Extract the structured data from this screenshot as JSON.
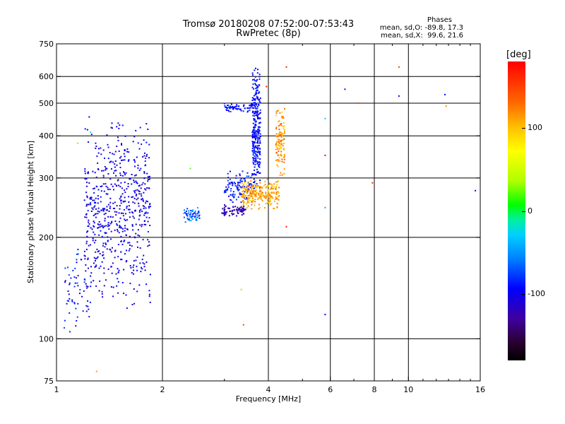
{
  "title_line1": "Tromsø 20180208 07:52:00-07:53:43",
  "title_line2": "RwPretec (8p)",
  "phase_header": "Phases",
  "phase_O": "mean, sd,O: -89.8, 17.3",
  "phase_X": "mean, sd,X:  99.6, 21.6",
  "chart_data": {
    "type": "scatter",
    "xlabel": "Frequency [MHz]",
    "ylabel": "Stationary phase Virtual Height [km]",
    "xscale": "log",
    "yscale": "log",
    "xlim": [
      1,
      16
    ],
    "ylim": [
      75,
      750
    ],
    "xticks": [
      1,
      2,
      4,
      6,
      8,
      10,
      16
    ],
    "xtick_labels": [
      "1",
      "2",
      "4",
      "6",
      "8",
      "10",
      "16"
    ],
    "yticks": [
      75,
      100,
      200,
      300,
      400,
      500,
      600,
      750
    ],
    "ytick_labels": [
      "75",
      "100",
      "200",
      "300",
      "400",
      "500",
      "600",
      "750"
    ],
    "grid": true,
    "colorbar": {
      "label": "[deg]",
      "range": [
        -180,
        180
      ],
      "ticks": [
        100,
        0,
        -100
      ],
      "tick_labels": [
        "100",
        "0",
        "-100"
      ]
    },
    "clusters": [
      {
        "f": [
          1.2,
          1.85
        ],
        "h": [
          120,
          480
        ],
        "phase": [
          -120,
          -85
        ],
        "n": 620
      },
      {
        "f": [
          1.05,
          1.25
        ],
        "h": [
          100,
          200
        ],
        "phase": [
          -110,
          -70
        ],
        "n": 60
      },
      {
        "f": [
          2.3,
          2.55
        ],
        "h": [
          220,
          245
        ],
        "phase": [
          -100,
          -30
        ],
        "n": 60
      },
      {
        "f": [
          2.95,
          3.45
        ],
        "h": [
          230,
          250
        ],
        "phase": [
          -140,
          -100
        ],
        "n": 70
      },
      {
        "f": [
          3.0,
          3.7
        ],
        "h": [
          250,
          320
        ],
        "phase": [
          -110,
          -70
        ],
        "n": 120
      },
      {
        "f": [
          3.6,
          3.8
        ],
        "h": [
          270,
          650
        ],
        "phase": [
          -105,
          -80
        ],
        "n": 300
      },
      {
        "f": [
          3.0,
          3.6
        ],
        "h": [
          470,
          500
        ],
        "phase": [
          -100,
          -80
        ],
        "n": 60
      },
      {
        "f": [
          3.35,
          4.3
        ],
        "h": [
          240,
          300
        ],
        "phase": [
          90,
          130
        ],
        "n": 260
      },
      {
        "f": [
          4.2,
          4.45
        ],
        "h": [
          300,
          500
        ],
        "phase": [
          90,
          140
        ],
        "n": 120
      }
    ],
    "outliers": [
      {
        "f": 1.15,
        "h": 380,
        "phase": 100
      },
      {
        "f": 1.3,
        "h": 80,
        "phase": 110
      },
      {
        "f": 1.25,
        "h": 410,
        "phase": -20
      },
      {
        "f": 2.4,
        "h": 320,
        "phase": 20
      },
      {
        "f": 3.35,
        "h": 140,
        "phase": 30
      },
      {
        "f": 3.4,
        "h": 110,
        "phase": 150
      },
      {
        "f": 3.95,
        "h": 560,
        "phase": 170
      },
      {
        "f": 4.5,
        "h": 640,
        "phase": 160
      },
      {
        "f": 4.5,
        "h": 215,
        "phase": 175
      },
      {
        "f": 5.8,
        "h": 450,
        "phase": -30
      },
      {
        "f": 5.8,
        "h": 350,
        "phase": 180
      },
      {
        "f": 5.8,
        "h": 245,
        "phase": -40
      },
      {
        "f": 5.8,
        "h": 118,
        "phase": -95
      },
      {
        "f": 6.6,
        "h": 550,
        "phase": -90
      },
      {
        "f": 7.2,
        "h": 500,
        "phase": 150
      },
      {
        "f": 7.9,
        "h": 290,
        "phase": 160
      },
      {
        "f": 9.4,
        "h": 640,
        "phase": 150
      },
      {
        "f": 9.4,
        "h": 525,
        "phase": -95
      },
      {
        "f": 12.7,
        "h": 530,
        "phase": -90
      },
      {
        "f": 12.8,
        "h": 490,
        "phase": 120
      },
      {
        "f": 15.5,
        "h": 275,
        "phase": -95
      }
    ]
  }
}
